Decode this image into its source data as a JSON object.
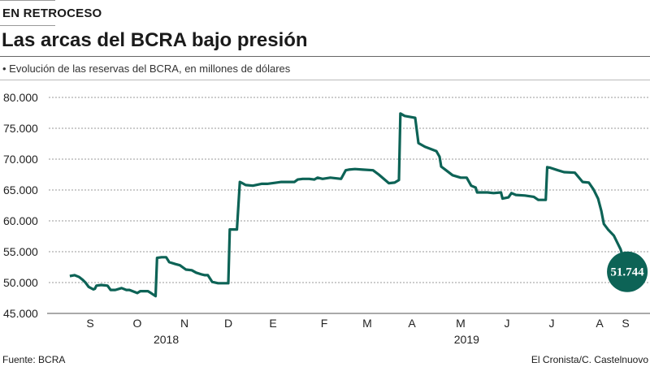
{
  "header": {
    "kicker": "EN RETROCESO",
    "title": "Las arcas del BCRA bajo presión",
    "subtitle": "• Evolución de las reservas del BCRA, en millones de dólares"
  },
  "footer": {
    "source": "Fuente: BCRA",
    "credit": "El Cronista/C. Castelnuovo"
  },
  "chart_data": {
    "type": "line",
    "title": "Las arcas del BCRA bajo presión",
    "ylabel": "",
    "xlabel": "",
    "ylim": [
      45000,
      80000
    ],
    "yticks": [
      80000,
      75000,
      70000,
      65000,
      60000,
      55000,
      50000,
      45000
    ],
    "ytick_labels": [
      "80.000",
      "75.000",
      "70.000",
      "65.000",
      "60.000",
      "55.000",
      "50.000",
      "45.000"
    ],
    "grid": true,
    "line_color": "#0d6356",
    "month_ticks": [
      {
        "label": "S",
        "date": "2018-09-01"
      },
      {
        "label": "O",
        "date": "2018-10-01"
      },
      {
        "label": "N",
        "date": "2018-11-01"
      },
      {
        "label": "D",
        "date": "2018-12-01"
      },
      {
        "label": "E",
        "date": "2019-01-01"
      },
      {
        "label": "F",
        "date": "2019-02-01"
      },
      {
        "label": "M",
        "date": "2019-03-01"
      },
      {
        "label": "A",
        "date": "2019-04-01"
      },
      {
        "label": "M",
        "date": "2019-05-01"
      },
      {
        "label": "J",
        "date": "2019-06-01"
      },
      {
        "label": "J",
        "date": "2019-07-01"
      },
      {
        "label": "A",
        "date": "2019-08-01"
      },
      {
        "label": "S",
        "date": "2019-09-01"
      }
    ],
    "year_labels": [
      {
        "label": "2018",
        "date": "2018-10-20"
      },
      {
        "label": "2019",
        "date": "2019-05-05"
      }
    ],
    "last_value": {
      "label": "51.744",
      "date": "2019-09-03",
      "value": 51744
    },
    "points": [
      [
        "2018-08-19",
        51050
      ],
      [
        "2018-08-22",
        51200
      ],
      [
        "2018-08-25",
        50900
      ],
      [
        "2018-08-27",
        50500
      ],
      [
        "2018-08-29",
        50000
      ],
      [
        "2018-08-31",
        49300
      ],
      [
        "2018-09-03",
        48900
      ],
      [
        "2018-09-04",
        49000
      ],
      [
        "2018-09-05",
        49500
      ],
      [
        "2018-09-08",
        49600
      ],
      [
        "2018-09-12",
        49500
      ],
      [
        "2018-09-14",
        48800
      ],
      [
        "2018-09-17",
        48800
      ],
      [
        "2018-09-21",
        49100
      ],
      [
        "2018-09-24",
        48800
      ],
      [
        "2018-09-26",
        48800
      ],
      [
        "2018-09-28",
        48600
      ],
      [
        "2018-10-01",
        48300
      ],
      [
        "2018-10-03",
        48600
      ],
      [
        "2018-10-08",
        48600
      ],
      [
        "2018-10-10",
        48300
      ],
      [
        "2018-10-13",
        47800
      ],
      [
        "2018-10-14",
        54000
      ],
      [
        "2018-10-17",
        54100
      ],
      [
        "2018-10-20",
        54100
      ],
      [
        "2018-10-22",
        53300
      ],
      [
        "2018-10-26",
        53000
      ],
      [
        "2018-10-29",
        52800
      ],
      [
        "2018-11-02",
        52100
      ],
      [
        "2018-11-06",
        52000
      ],
      [
        "2018-11-09",
        51600
      ],
      [
        "2018-11-13",
        51300
      ],
      [
        "2018-11-15",
        51200
      ],
      [
        "2018-11-17",
        51200
      ],
      [
        "2018-11-20",
        50100
      ],
      [
        "2018-11-24",
        49900
      ],
      [
        "2018-12-01",
        49900
      ],
      [
        "2018-12-02",
        58600
      ],
      [
        "2018-12-07",
        58600
      ],
      [
        "2018-12-09",
        66300
      ],
      [
        "2018-12-10",
        66200
      ],
      [
        "2018-12-13",
        65800
      ],
      [
        "2018-12-18",
        65700
      ],
      [
        "2018-12-24",
        66000
      ],
      [
        "2018-12-28",
        66000
      ],
      [
        "2019-01-03",
        66200
      ],
      [
        "2019-01-06",
        66300
      ],
      [
        "2019-01-09",
        66300
      ],
      [
        "2019-01-14",
        66300
      ],
      [
        "2019-01-16",
        66700
      ],
      [
        "2019-01-19",
        66800
      ],
      [
        "2019-01-23",
        66800
      ],
      [
        "2019-01-26",
        66700
      ],
      [
        "2019-01-28",
        67000
      ],
      [
        "2019-01-31",
        66800
      ],
      [
        "2019-02-05",
        67000
      ],
      [
        "2019-02-12",
        66800
      ],
      [
        "2019-02-15",
        68200
      ],
      [
        "2019-02-17",
        68300
      ],
      [
        "2019-02-21",
        68400
      ],
      [
        "2019-02-26",
        68300
      ],
      [
        "2019-03-05",
        68200
      ],
      [
        "2019-03-09",
        67500
      ],
      [
        "2019-03-14",
        66500
      ],
      [
        "2019-03-16",
        66100
      ],
      [
        "2019-03-20",
        66200
      ],
      [
        "2019-03-23",
        66600
      ],
      [
        "2019-03-24",
        77400
      ],
      [
        "2019-03-27",
        77000
      ],
      [
        "2019-04-03",
        76700
      ],
      [
        "2019-04-05",
        72600
      ],
      [
        "2019-04-09",
        72000
      ],
      [
        "2019-04-16",
        71300
      ],
      [
        "2019-04-18",
        70400
      ],
      [
        "2019-04-19",
        68800
      ],
      [
        "2019-04-22",
        68200
      ],
      [
        "2019-04-26",
        67400
      ],
      [
        "2019-05-01",
        67000
      ],
      [
        "2019-05-05",
        67000
      ],
      [
        "2019-05-08",
        65700
      ],
      [
        "2019-05-11",
        65400
      ],
      [
        "2019-05-12",
        64600
      ],
      [
        "2019-05-19",
        64600
      ],
      [
        "2019-05-23",
        64500
      ],
      [
        "2019-05-28",
        64600
      ],
      [
        "2019-05-29",
        63600
      ],
      [
        "2019-06-02",
        63800
      ],
      [
        "2019-06-04",
        64500
      ],
      [
        "2019-06-07",
        64200
      ],
      [
        "2019-06-13",
        64100
      ],
      [
        "2019-06-19",
        63900
      ],
      [
        "2019-06-22",
        63400
      ],
      [
        "2019-06-27",
        63400
      ],
      [
        "2019-06-28",
        68700
      ],
      [
        "2019-06-30",
        68600
      ],
      [
        "2019-07-05",
        68200
      ],
      [
        "2019-07-09",
        67900
      ],
      [
        "2019-07-16",
        67800
      ],
      [
        "2019-07-18",
        67200
      ],
      [
        "2019-07-21",
        66300
      ],
      [
        "2019-07-25",
        66200
      ],
      [
        "2019-07-28",
        65100
      ],
      [
        "2019-07-31",
        63600
      ],
      [
        "2019-08-03",
        61600
      ],
      [
        "2019-08-06",
        59500
      ],
      [
        "2019-08-11",
        58600
      ],
      [
        "2019-08-18",
        57600
      ],
      [
        "2019-08-26",
        55400
      ],
      [
        "2019-09-03",
        51744
      ]
    ]
  }
}
